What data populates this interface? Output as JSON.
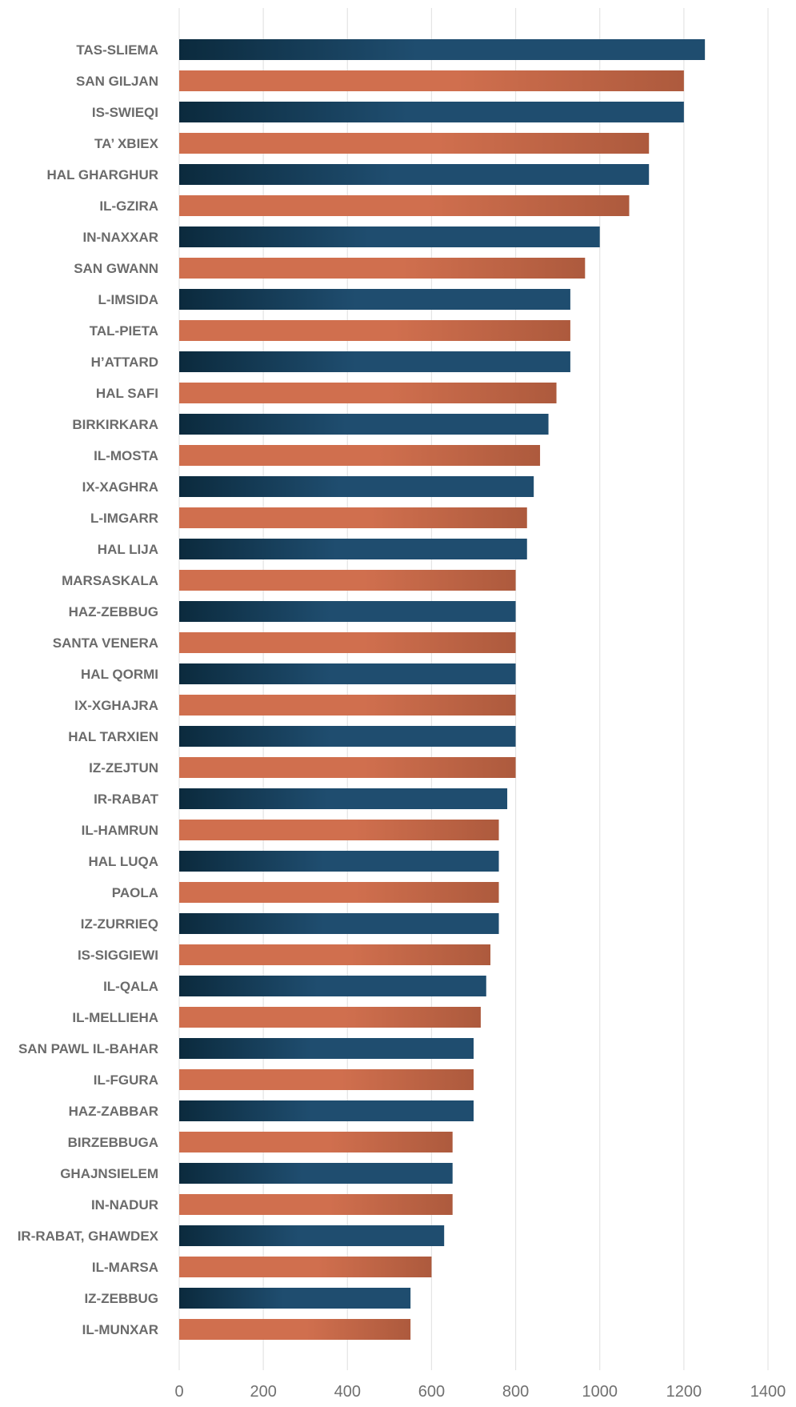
{
  "chart_data": {
    "type": "bar",
    "orientation": "horizontal",
    "categories": [
      "TAS-SLIEMA",
      "SAN GILJAN",
      "IS-SWIEQI",
      "TA’ XBIEX",
      "HAL GHARGHUR",
      "IL-GZIRA",
      "IN-NAXXAR",
      "SAN GWANN",
      "L-IMSIDA",
      "TAL-PIETA",
      "H’ATTARD",
      "HAL SAFI",
      "BIRKIRKARA",
      "IL-MOSTA",
      "IX-XAGHRA",
      "L-IMGARR",
      "HAL LIJA",
      "MARSASKALA",
      "HAZ-ZEBBUG",
      "SANTA VENERA",
      "HAL QORMI",
      "IX-XGHAJRA",
      "HAL TARXIEN",
      "IZ-ZEJTUN",
      "IR-RABAT",
      "IL-HAMRUN",
      "HAL LUQA",
      "PAOLA",
      "IZ-ZURRIEQ",
      "IS-SIGGIEWI",
      "IL-QALA",
      "IL-MELLIEHA",
      "SAN PAWL IL-BAHAR",
      "IL-FGURA",
      "HAZ-ZABBAR",
      "BIRZEBBUGA",
      "GHAJNSIELEM",
      "IN-NADUR",
      "IR-RABAT, GHAWDEX",
      "IL-MARSA",
      "IZ-ZEBBUG",
      "IL-MUNXAR"
    ],
    "values": [
      1250,
      1200,
      1200,
      1117,
      1117,
      1070,
      1000,
      965,
      930,
      930,
      930,
      897,
      878,
      858,
      843,
      827,
      827,
      800,
      800,
      800,
      800,
      800,
      800,
      800,
      780,
      760,
      760,
      760,
      760,
      740,
      730,
      717,
      700,
      700,
      700,
      650,
      650,
      650,
      630,
      600,
      550,
      550
    ],
    "xlim": [
      0,
      1400
    ],
    "xticks": [
      0,
      200,
      400,
      600,
      800,
      1000,
      1200,
      1400
    ],
    "grid": "vertical",
    "legend": "none",
    "title": "",
    "xlabel": "",
    "ylabel": "",
    "colors": {
      "dark_start": "#0b2a3d",
      "dark_end": "#1f4d6f",
      "orange_start": "#d06f4e",
      "orange_end": "#ad5a3d",
      "label": "#6b6b6b",
      "grid": "#e4e4e4"
    }
  }
}
